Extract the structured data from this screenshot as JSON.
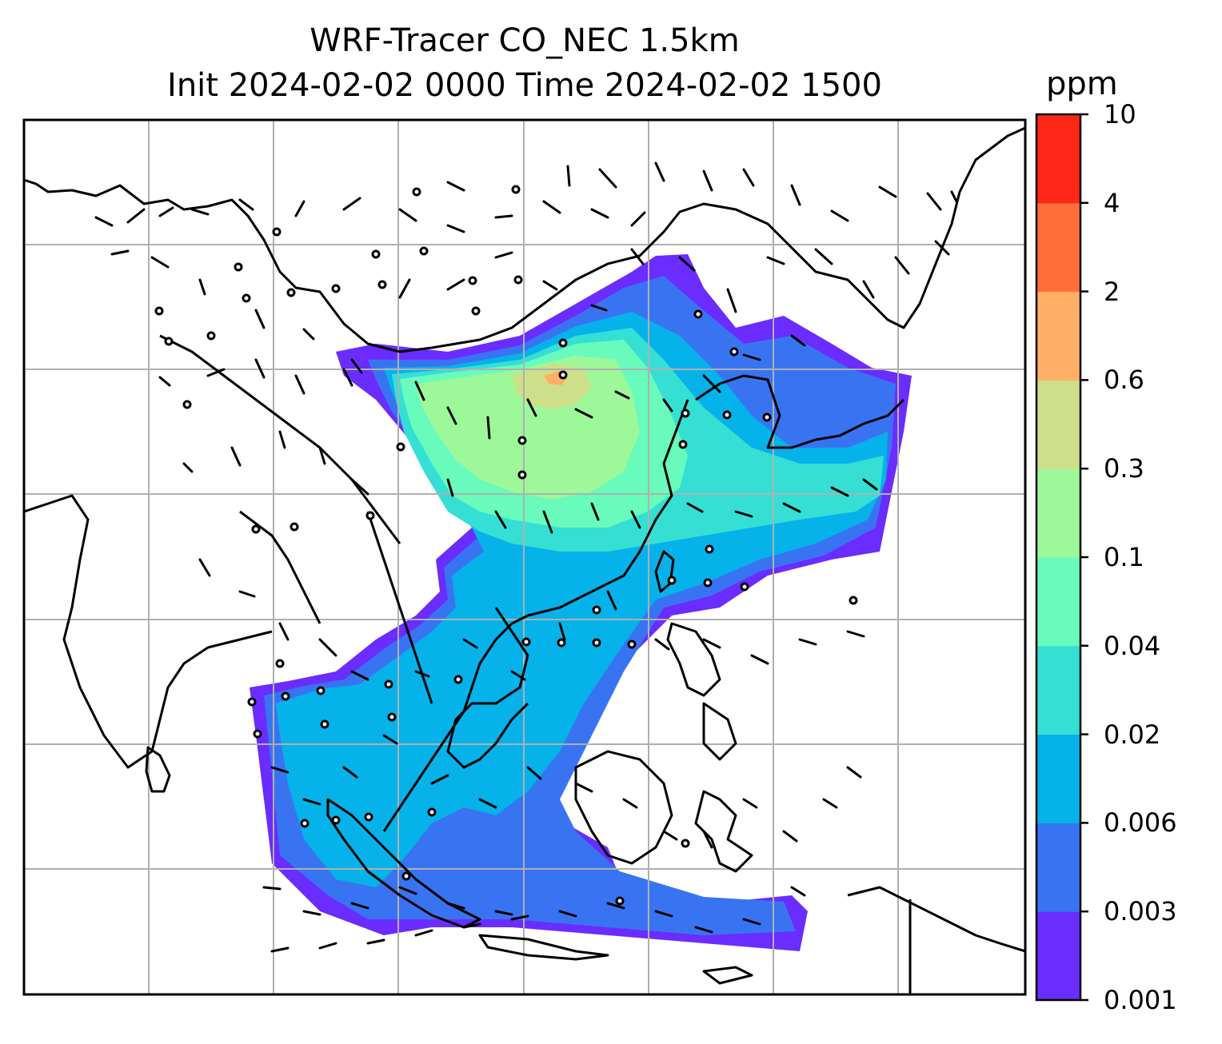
{
  "title": {
    "line1": "WRF-Tracer CO_NEC 1.5km",
    "line2": "Init 2024-02-02 0000 Time 2024-02-02 1500"
  },
  "colorbar": {
    "unit": "ppm",
    "levels": [
      "0.001",
      "0.003",
      "0.006",
      "0.02",
      "0.04",
      "0.1",
      "0.3",
      "0.6",
      "2",
      "4",
      "10"
    ],
    "colors": [
      "#6a2cff",
      "#3874f2",
      "#05b2ea",
      "#35dfd4",
      "#68fbbb",
      "#9df89a",
      "#cddf89",
      "#ffb066",
      "#ff6e3a",
      "#ff2717"
    ]
  },
  "map": {
    "frame_color": "#000000",
    "grid_color": "#b0b0b0",
    "coastline_color": "#000000",
    "wind_barb_color": "#000000"
  }
}
